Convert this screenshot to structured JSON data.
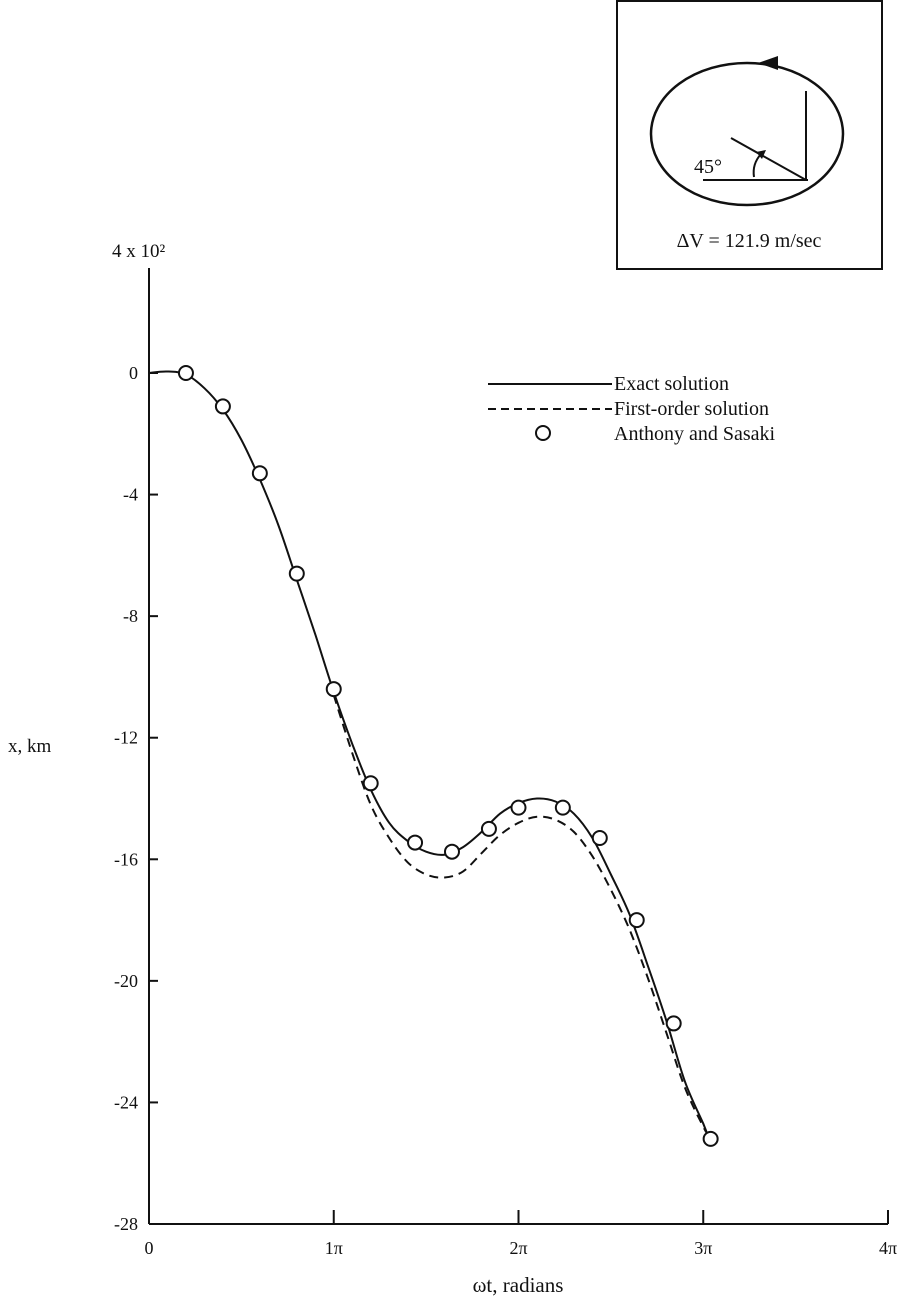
{
  "chart_data": {
    "type": "line",
    "title": "",
    "xlabel": "ωt, radians",
    "ylabel": "x, km",
    "y_multiplier_label": "4 x 10²",
    "xlim": [
      0,
      4
    ],
    "ylim": [
      -28,
      4
    ],
    "x_unit": "π",
    "xticks": [
      0,
      1,
      2,
      3,
      4
    ],
    "xtick_labels": [
      "0",
      "1π",
      "2π",
      "3π",
      "4π"
    ],
    "yticks": [
      0,
      -4,
      -8,
      -12,
      -16,
      -20,
      -24,
      -28
    ],
    "ytick_labels": [
      "0",
      "-4",
      "-8",
      "-12",
      "-16",
      "-20",
      "-24",
      "-28"
    ],
    "grid": false,
    "legend_placement": "top-right",
    "series": [
      {
        "name": "Exact solution",
        "style": "solid",
        "x": [
          0,
          0.1,
          0.2,
          0.3,
          0.4,
          0.5,
          0.6,
          0.7,
          0.8,
          0.9,
          1.0,
          1.1,
          1.2,
          1.3,
          1.4,
          1.5,
          1.6,
          1.7,
          1.8,
          1.9,
          2.0,
          2.1,
          2.2,
          2.3,
          2.4,
          2.5,
          2.6,
          2.7,
          2.8,
          2.9,
          3.0,
          3.03
        ],
        "y": [
          0,
          0.05,
          -0.05,
          -0.5,
          -1.2,
          -2.2,
          -3.5,
          -5.0,
          -6.8,
          -8.6,
          -10.5,
          -12.2,
          -13.7,
          -14.8,
          -15.4,
          -15.75,
          -15.85,
          -15.6,
          -15.1,
          -14.5,
          -14.15,
          -14.0,
          -14.1,
          -14.5,
          -15.3,
          -16.5,
          -17.8,
          -19.5,
          -21.3,
          -23.3,
          -24.7,
          -25.2
        ]
      },
      {
        "name": "First-order solution",
        "style": "dashed",
        "x": [
          1.0,
          1.1,
          1.2,
          1.3,
          1.4,
          1.5,
          1.6,
          1.7,
          1.8,
          1.9,
          2.0,
          2.1,
          2.2,
          2.3,
          2.4,
          2.5,
          2.6,
          2.7,
          2.8,
          2.9,
          3.0,
          3.03
        ],
        "y": [
          -10.6,
          -12.5,
          -14.2,
          -15.3,
          -16.1,
          -16.5,
          -16.6,
          -16.4,
          -15.8,
          -15.2,
          -14.8,
          -14.6,
          -14.7,
          -15.1,
          -15.9,
          -17.0,
          -18.3,
          -19.9,
          -21.7,
          -23.5,
          -24.8,
          -25.1
        ]
      },
      {
        "name": "Anthony and Sasaki",
        "style": "circles",
        "x": [
          0.2,
          0.4,
          0.6,
          0.8,
          1.0,
          1.2,
          1.44,
          1.64,
          1.84,
          2.0,
          2.24,
          2.44,
          2.64,
          2.84,
          3.04
        ],
        "y": [
          0,
          -1.1,
          -3.3,
          -6.6,
          -10.4,
          -13.5,
          -15.45,
          -15.75,
          -15.0,
          -14.3,
          -14.3,
          -15.3,
          -18.0,
          -21.4,
          -25.2
        ]
      }
    ],
    "inset": {
      "angle_label": "45°",
      "delta_v_label": "ΔV = 121.9 m/sec"
    }
  }
}
